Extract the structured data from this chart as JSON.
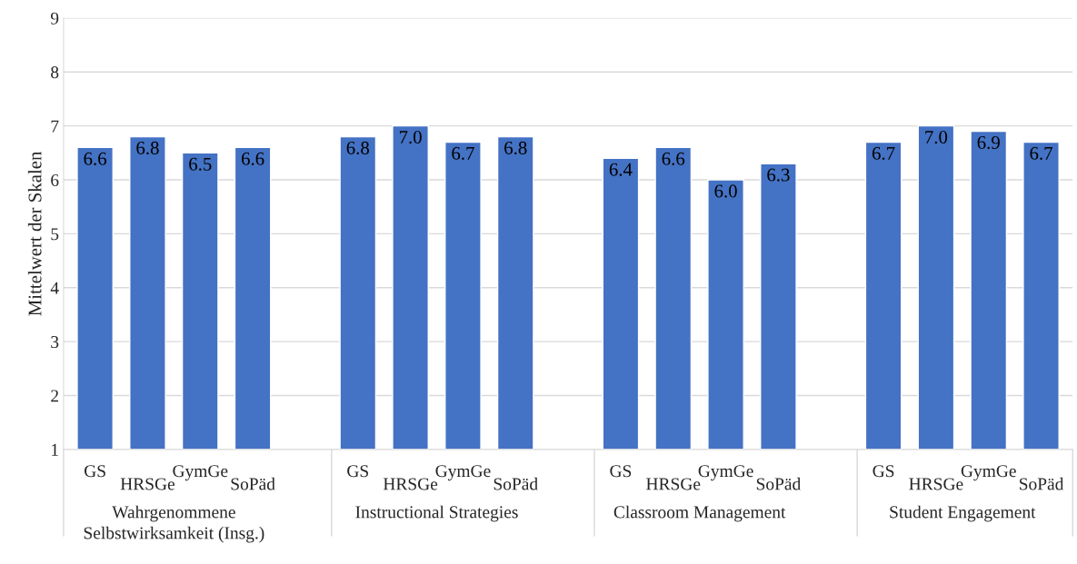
{
  "chart_data": {
    "type": "bar",
    "ylabel": "Mittelwert der Skalen",
    "categories": [
      "GS",
      "HRSGe",
      "GymGe",
      "SoPäd",
      null,
      "GS",
      "HRSGe",
      "GymGe",
      "SoPäd",
      null,
      "GS",
      "HRSGe",
      "GymGe",
      "SoPäd",
      null,
      "GS",
      "HRSGe",
      "GymGe",
      "SoPäd"
    ],
    "values": [
      6.6,
      6.8,
      6.5,
      6.6,
      null,
      6.8,
      7.0,
      6.7,
      6.8,
      null,
      6.4,
      6.6,
      6.0,
      6.3,
      null,
      6.7,
      7.0,
      6.9,
      6.7
    ],
    "value_labels": [
      "6.6",
      "6.8",
      "6.5",
      "6.6",
      null,
      "6.8",
      "7.0",
      "6.7",
      "6.8",
      null,
      "6.4",
      "6.6",
      "6.0",
      "6.3",
      null,
      "6.7",
      "7.0",
      "6.9",
      "6.7"
    ],
    "color": "#4472c4",
    "ylim": [
      1,
      9
    ],
    "yticks": [
      1,
      2,
      3,
      4,
      5,
      6,
      7,
      8,
      9
    ],
    "grid": "y",
    "annotations": [
      "Wahrgenommene\nSelbstwirksamkeit (Insg.)",
      "Instructional Strategies",
      "Classroom Management",
      "Student Engagement"
    ]
  }
}
